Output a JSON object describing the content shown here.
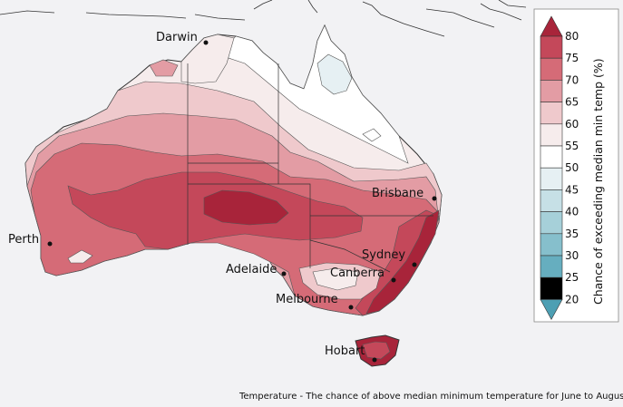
{
  "caption": "Temperature - The chance of above median minimum temperature for June to August",
  "legend": {
    "title": "Chance of exceeding median min temp (%)",
    "ticks": [
      "80",
      "75",
      "70",
      "65",
      "60",
      "55",
      "50",
      "45",
      "40",
      "35",
      "30",
      "25",
      "20"
    ],
    "colors": {
      "c80": "#a8243a",
      "c75": "#c4485a",
      "c70": "#d56b77",
      "c65": "#e39ca4",
      "c60": "#efc9cc",
      "c55": "#f6ecec",
      "c50": "#ffffff",
      "c45": "#e6f0f3",
      "c40": "#c6e0e6",
      "c35": "#a6d0d9",
      "c30": "#86bfcc",
      "c25": "#66aebf",
      "c20": "#4d9fb3"
    }
  },
  "cities": {
    "darwin": "Darwin",
    "brisbane": "Brisbane",
    "perth": "Perth",
    "adelaide": "Adelaide",
    "sydney": "Sydney",
    "canberra": "Canberra",
    "melbourne": "Melbourne",
    "hobart": "Hobart"
  }
}
